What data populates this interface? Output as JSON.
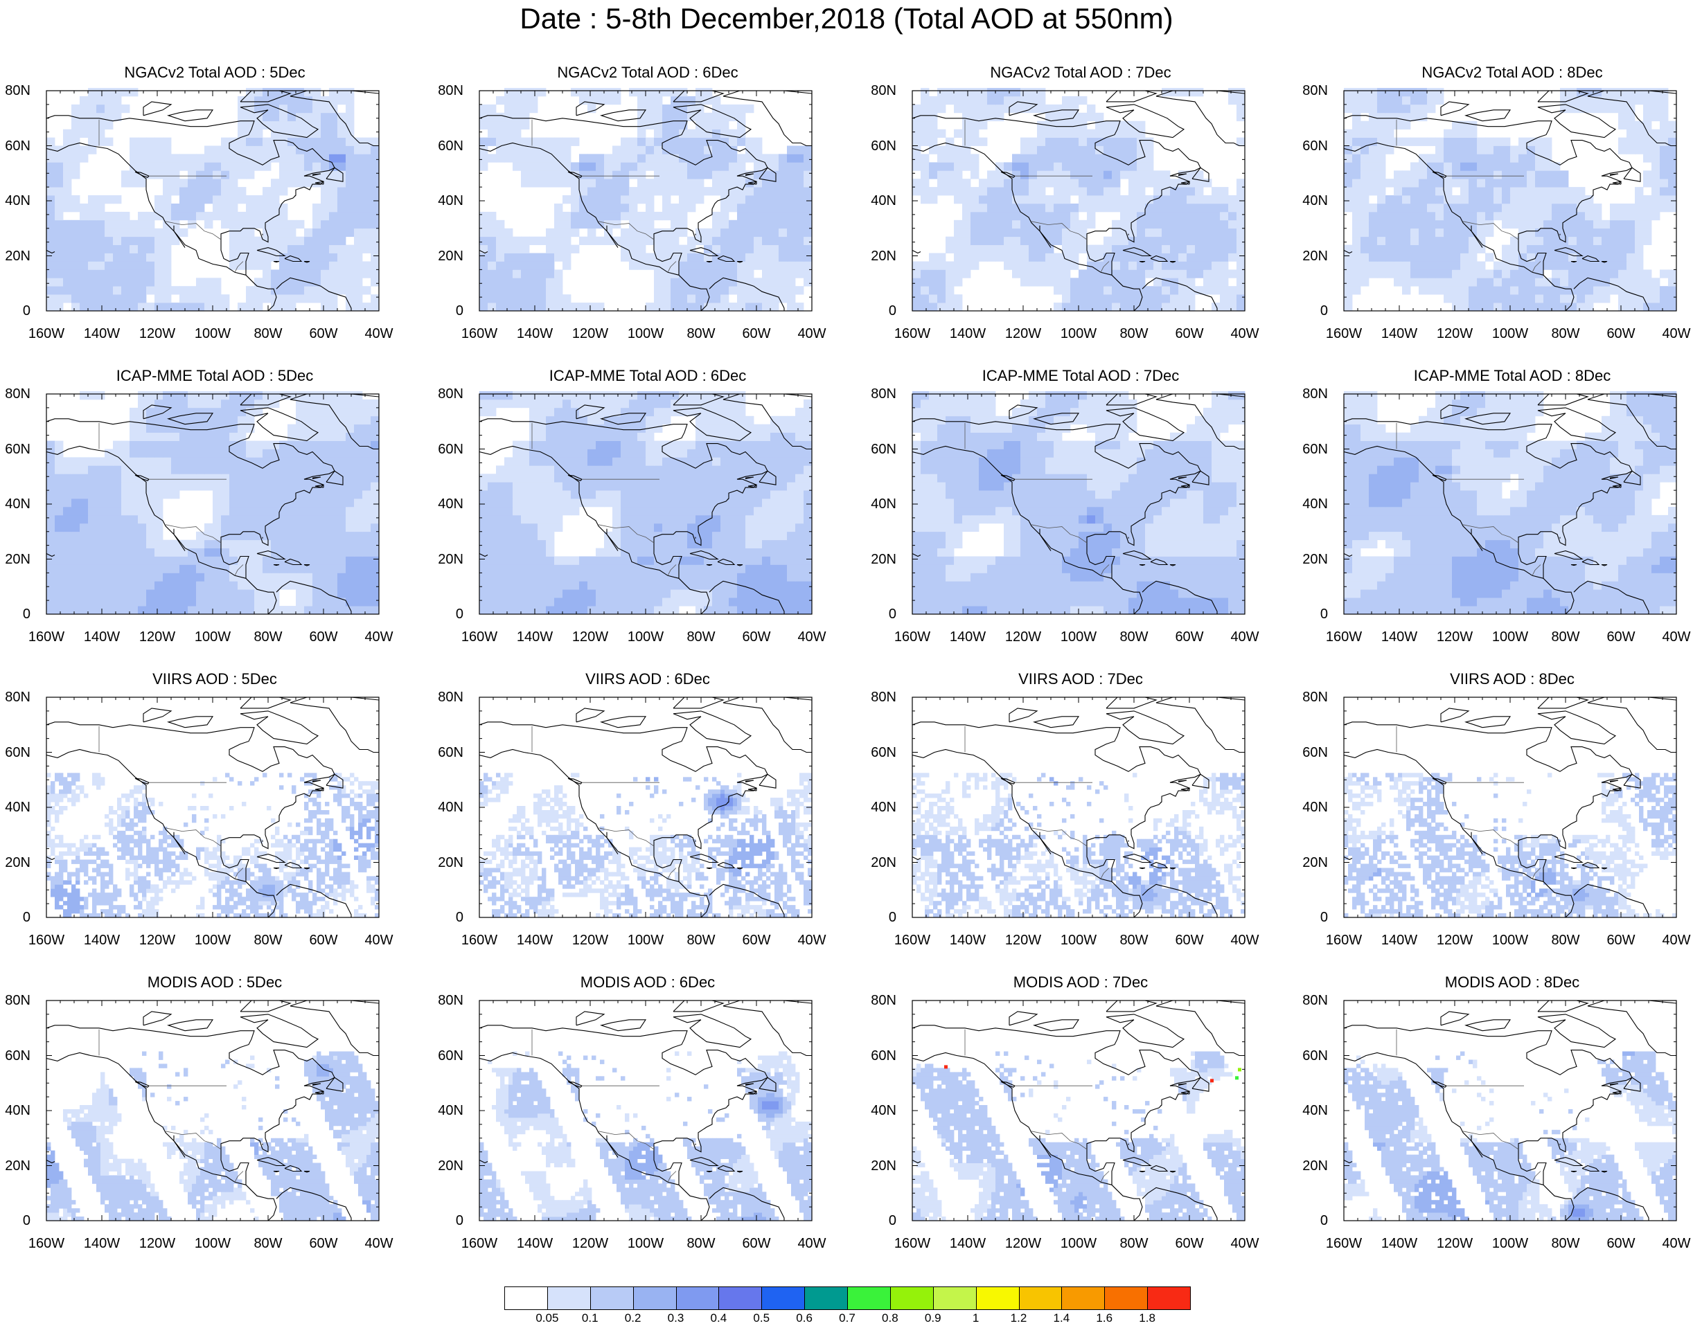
{
  "title": "Date : 5-8th December,2018 (Total AOD at 550nm)",
  "axes": {
    "lat_labels": [
      "80N",
      "60N",
      "40N",
      "20N",
      "0"
    ],
    "lon_labels": [
      "160W",
      "140W",
      "120W",
      "100W",
      "80W",
      "60W",
      "40W"
    ],
    "lat_range": [
      0,
      80
    ],
    "lon_range": [
      -160,
      -40
    ]
  },
  "rows": [
    {
      "product": "NGACv2 Total AOD",
      "panels": [
        {
          "title": "NGACv2 Total AOD : 5Dec",
          "pattern": "model_smooth",
          "seed": 11,
          "hotspots": [
            [
              -55,
              55,
              0.38
            ]
          ]
        },
        {
          "title": "NGACv2 Total AOD : 6Dec",
          "pattern": "model_smooth",
          "seed": 12,
          "hotspots": [
            [
              -120,
              52,
              0.3
            ],
            [
              -45,
              55,
              0.3
            ]
          ]
        },
        {
          "title": "NGACv2 Total AOD : 7Dec",
          "pattern": "model_smooth",
          "seed": 13,
          "hotspots": [
            [
              -120,
              52,
              0.32
            ],
            [
              -90,
              50,
              0.25
            ]
          ]
        },
        {
          "title": "NGACv2 Total AOD : 8Dec",
          "pattern": "model_smooth",
          "seed": 14,
          "hotspots": [
            [
              -115,
              52,
              0.3
            ],
            [
              -85,
              48,
              0.25
            ]
          ]
        }
      ]
    },
    {
      "product": "ICAP-MME Total AOD",
      "panels": [
        {
          "title": "ICAP-MME Total AOD : 5Dec",
          "pattern": "model_full",
          "seed": 21,
          "hotspots": [
            [
              -100,
              22,
              0.3
            ],
            [
              -45,
              10,
              0.3
            ]
          ]
        },
        {
          "title": "ICAP-MME Total AOD : 6Dec",
          "pattern": "model_full",
          "seed": 22,
          "hotspots": [
            [
              -100,
              20,
              0.3
            ],
            [
              -95,
              32,
              0.28
            ]
          ]
        },
        {
          "title": "ICAP-MME Total AOD : 7Dec",
          "pattern": "model_full",
          "seed": 23,
          "hotspots": [
            [
              -95,
              35,
              0.38
            ],
            [
              -100,
              20,
              0.3
            ],
            [
              -125,
              53,
              0.3
            ]
          ]
        },
        {
          "title": "ICAP-MME Total AOD : 8Dec",
          "pattern": "model_full",
          "seed": 24,
          "hotspots": [
            [
              -100,
              22,
              0.35
            ],
            [
              -125,
              52,
              0.3
            ]
          ]
        }
      ]
    },
    {
      "product": "VIIRS AOD",
      "panels": [
        {
          "title": "VIIRS AOD : 5Dec",
          "pattern": "sat_speckle",
          "seed": 31,
          "hotspots": [
            [
              -80,
              10,
              0.3
            ]
          ]
        },
        {
          "title": "VIIRS AOD : 6Dec",
          "pattern": "sat_speckle",
          "seed": 32,
          "hotspots": [
            [
              -72,
              42,
              0.45
            ]
          ]
        },
        {
          "title": "VIIRS AOD : 7Dec",
          "pattern": "sat_speckle",
          "seed": 33,
          "hotspots": [
            [
              -75,
              8,
              0.3
            ]
          ]
        },
        {
          "title": "VIIRS AOD : 8Dec",
          "pattern": "sat_speckle",
          "seed": 34,
          "hotspots": [
            [
              -75,
              8,
              0.3
            ]
          ]
        }
      ]
    },
    {
      "product": "MODIS AOD",
      "panels": [
        {
          "title": "MODIS AOD : 5Dec",
          "pattern": "sat_swath",
          "seed": 41,
          "hotspots": [
            [
              -60,
              55,
              0.3
            ]
          ]
        },
        {
          "title": "MODIS AOD : 6Dec",
          "pattern": "sat_swath",
          "seed": 42,
          "hotspots": [
            [
              -55,
              42,
              0.45
            ]
          ]
        },
        {
          "title": "MODIS AOD : 7Dec",
          "pattern": "sat_swath",
          "seed": 43,
          "hotspots": [],
          "outliers": [
            [
              -148,
              56,
              1.9
            ],
            [
              -52,
              51,
              1.9
            ],
            [
              -42,
              55,
              0.85
            ],
            [
              -43,
              52,
              0.75
            ]
          ]
        },
        {
          "title": "MODIS AOD : 8Dec",
          "pattern": "sat_swath",
          "seed": 44,
          "hotspots": [
            [
              -75,
              3,
              0.4
            ]
          ]
        }
      ]
    }
  ],
  "colorbar": {
    "labels": [
      "0.05",
      "0.1",
      "0.2",
      "0.3",
      "0.4",
      "0.5",
      "0.6",
      "0.7",
      "0.8",
      "0.9",
      "1",
      "1.2",
      "1.4",
      "1.6",
      "1.8"
    ],
    "levels": [
      0.05,
      0.1,
      0.2,
      0.3,
      0.4,
      0.5,
      0.6,
      0.7,
      0.8,
      0.9,
      1,
      1.2,
      1.4,
      1.6,
      1.8
    ],
    "colors": [
      "#ffffff",
      "#d6e2fb",
      "#b8cbf6",
      "#99b3f2",
      "#7f9af0",
      "#6677ec",
      "#1f63f2",
      "#009a90",
      "#3af23a",
      "#95f20a",
      "#c4f54a",
      "#f8f800",
      "#f8c400",
      "#f89a00",
      "#f87000",
      "#f82a14"
    ]
  }
}
